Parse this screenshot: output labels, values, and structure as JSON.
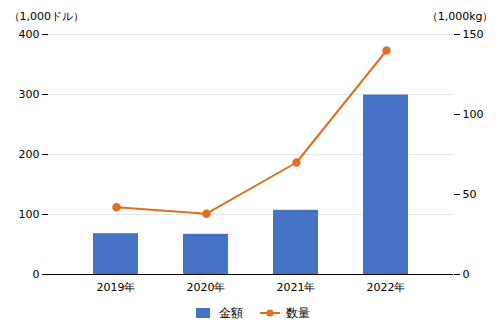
{
  "chart_data": {
    "type": "bar",
    "categories": [
      "2019年",
      "2020年",
      "2021年",
      "2022年"
    ],
    "series": [
      {
        "name": "金額",
        "type": "bar",
        "color": "#4472C4",
        "values": [
          68,
          67,
          107,
          299
        ]
      },
      {
        "name": "数量",
        "type": "line",
        "axis": "y2",
        "color": "#E07020",
        "marker": "circle",
        "values": [
          42,
          38,
          70,
          140
        ]
      }
    ],
    "ylabel": "（1,000ドル）",
    "y2label": "（1,000kg）",
    "ylim": [
      0,
      400
    ],
    "yticks": [
      0,
      100,
      200,
      300,
      400
    ],
    "y2lim": [
      0,
      150
    ],
    "y2ticks": [
      0,
      50,
      100,
      150
    ],
    "grid": true,
    "legend": "bottom"
  }
}
